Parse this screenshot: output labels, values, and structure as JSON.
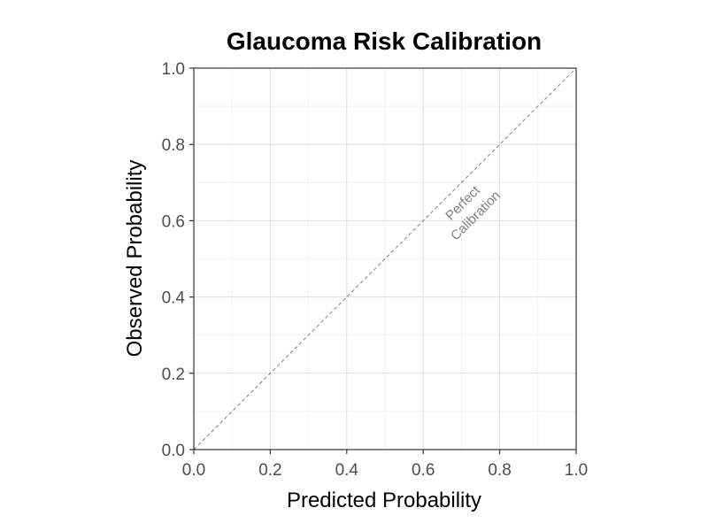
{
  "chart_data": {
    "type": "line",
    "title": "Glaucoma Risk Calibration",
    "xlabel": "Predicted Probability",
    "ylabel": "Observed Probability",
    "xlim": [
      0,
      1
    ],
    "ylim": [
      0,
      1
    ],
    "x_ticks": [
      0.0,
      0.2,
      0.4,
      0.6,
      0.8,
      1.0
    ],
    "y_ticks": [
      0.0,
      0.2,
      0.4,
      0.6,
      0.8,
      1.0
    ],
    "x_tick_labels": [
      "0.0",
      "0.2",
      "0.4",
      "0.6",
      "0.8",
      "1.0"
    ],
    "y_tick_labels": [
      "0.0",
      "0.2",
      "0.4",
      "0.6",
      "0.8",
      "1.0"
    ],
    "grid": true,
    "reference_line": {
      "x": [
        0,
        1
      ],
      "y": [
        0,
        1
      ],
      "style": "dashed",
      "color": "#808080"
    },
    "annotation": {
      "lines": [
        "Perfect",
        "Calibration"
      ],
      "x": 0.72,
      "y": 0.63,
      "angle_deg": -45,
      "color": "#808080"
    }
  }
}
